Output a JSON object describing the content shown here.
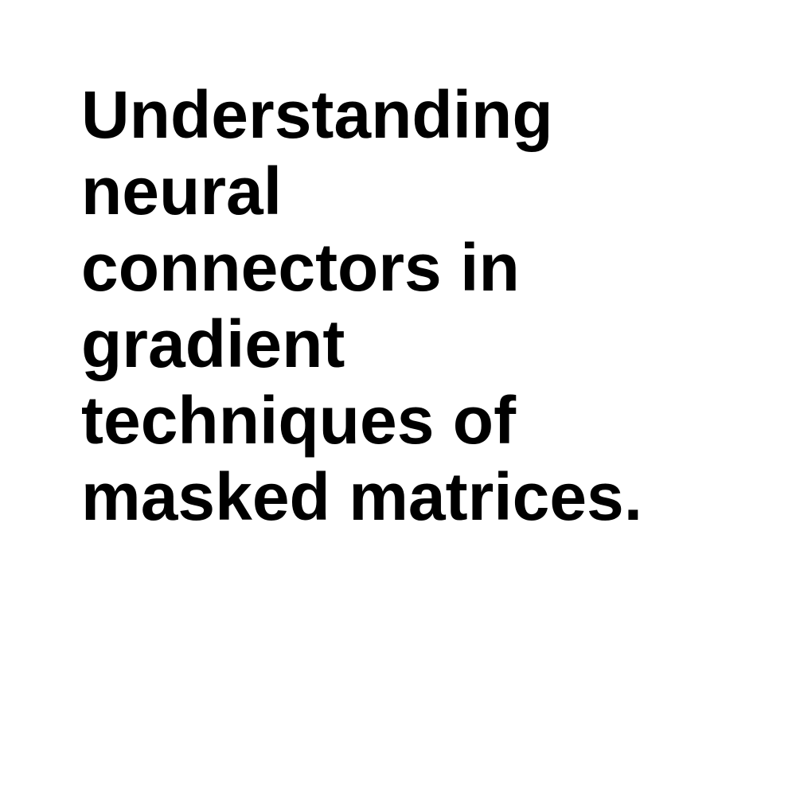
{
  "headline": {
    "lines": [
      "Understanding",
      "neural",
      "connectors in",
      "gradient",
      "techniques of",
      "masked matrices."
    ]
  },
  "colors": {
    "background": "#ffffff",
    "text": "#000000"
  }
}
